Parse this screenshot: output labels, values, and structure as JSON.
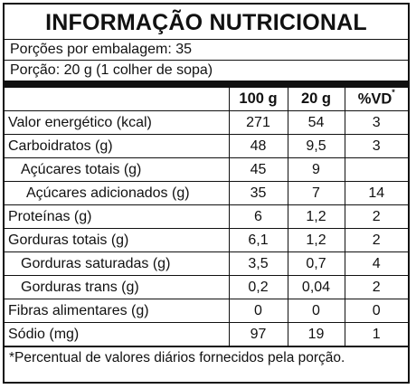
{
  "title": "INFORMAÇÃO NUTRICIONAL",
  "servings_per_package": "Porções por embalagem: 35",
  "serving_size": "Porção: 20 g (1 colher de sopa)",
  "columns": {
    "per100": "100 g",
    "per20": "20 g",
    "vd": "%VD",
    "vd_mark": "*"
  },
  "rows": [
    {
      "label": "Valor energético (kcal)",
      "per100": "271",
      "per20": "54",
      "vd": "3",
      "indent": 0
    },
    {
      "label": "Carboidratos (g)",
      "per100": "48",
      "per20": "9,5",
      "vd": "3",
      "indent": 0
    },
    {
      "label": "Açúcares totais (g)",
      "per100": "45",
      "per20": "9",
      "vd": "",
      "indent": 1
    },
    {
      "label": "Açúcares adicionados (g)",
      "per100": "35",
      "per20": "7",
      "vd": "14",
      "indent": 2
    },
    {
      "label": "Proteínas (g)",
      "per100": "6",
      "per20": "1,2",
      "vd": "2",
      "indent": 0
    },
    {
      "label": "Gorduras totais (g)",
      "per100": "6,1",
      "per20": "1,2",
      "vd": "2",
      "indent": 0
    },
    {
      "label": "Gorduras saturadas (g)",
      "per100": "3,5",
      "per20": "0,7",
      "vd": "4",
      "indent": 1
    },
    {
      "label": "Gorduras trans (g)",
      "per100": "0,2",
      "per20": "0,04",
      "vd": "2",
      "indent": 1
    },
    {
      "label": "Fibras alimentares (g)",
      "per100": "0",
      "per20": "0",
      "vd": "0",
      "indent": 0
    },
    {
      "label": "Sódio (mg)",
      "per100": "97",
      "per20": "19",
      "vd": "1",
      "indent": 0
    }
  ],
  "footnote": "*Percentual de valores diários fornecidos pela porção."
}
